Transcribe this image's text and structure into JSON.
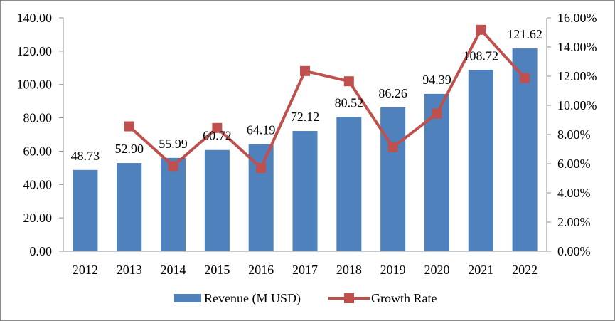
{
  "chart_data": {
    "type": "bar+line",
    "categories": [
      "2012",
      "2013",
      "2014",
      "2015",
      "2016",
      "2017",
      "2018",
      "2019",
      "2020",
      "2021",
      "2022"
    ],
    "series": [
      {
        "name": "Revenue (M USD)",
        "type": "bar",
        "axis": "left",
        "color": "#4f81bd",
        "values": [
          48.73,
          52.9,
          55.99,
          60.72,
          64.19,
          72.12,
          80.52,
          86.26,
          94.39,
          108.72,
          121.62
        ],
        "labels": [
          "48.73",
          "52.90",
          "55.99",
          "60.72",
          "64.19",
          "72.12",
          "80.52",
          "86.26",
          "94.39",
          "108.72",
          "121.62"
        ]
      },
      {
        "name": "Growth Rate",
        "type": "line",
        "axis": "right",
        "color": "#c0504d",
        "values": [
          null,
          8.56,
          5.84,
          8.45,
          5.71,
          12.35,
          11.65,
          7.13,
          9.43,
          15.18,
          11.87
        ]
      }
    ],
    "y_left": {
      "min": 0,
      "max": 140,
      "step": 20,
      "tick_labels": [
        "0.00",
        "20.00",
        "40.00",
        "60.00",
        "80.00",
        "100.00",
        "120.00",
        "140.00"
      ]
    },
    "y_right": {
      "min": 0,
      "max": 16,
      "step": 2,
      "tick_labels": [
        "0.00%",
        "2.00%",
        "4.00%",
        "6.00%",
        "8.00%",
        "10.00%",
        "12.00%",
        "14.00%",
        "16.00%"
      ]
    },
    "legend_position": "bottom",
    "grid": false
  }
}
